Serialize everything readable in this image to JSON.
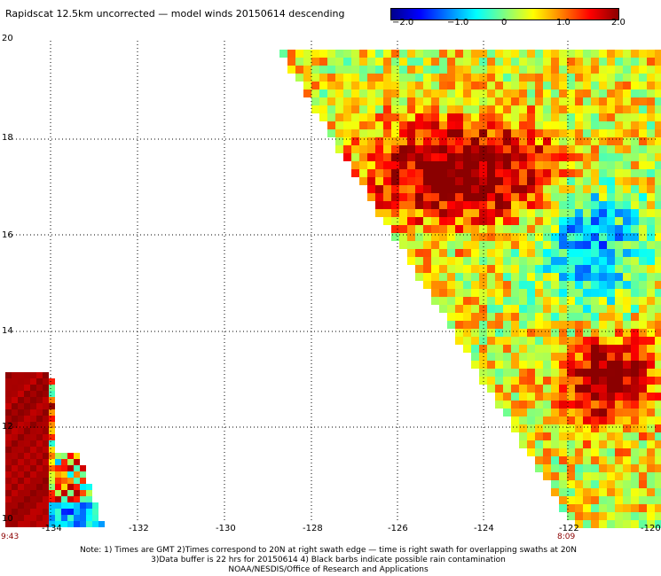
{
  "title": "Rapidscat 12.5km uncorrected — model winds 20150614 descending",
  "colorbar": {
    "labels": [
      "−2.0",
      "−1.0",
      "0",
      "1.0",
      "2.0"
    ],
    "stops": [
      "#00008b",
      "#0000ff",
      "#0080ff",
      "#00ffff",
      "#80ff80",
      "#ffff00",
      "#ff8000",
      "#ff0000",
      "#8b0000"
    ]
  },
  "y_axis": {
    "labels": [
      "20",
      "18",
      "16",
      "14",
      "12",
      "10"
    ]
  },
  "x_axis": {
    "labels": [
      "-134",
      "-132",
      "-130",
      "-128",
      "-126",
      "-124",
      "-122",
      "-120"
    ]
  },
  "time_labels": {
    "left": "9:43",
    "right": "8:09"
  },
  "notes": {
    "line1": "Note: 1) Times are GMT 2)Times correspond to 20N at right swath edge — time is right swath for overlapping swaths at 20N",
    "line2": "3)Data buffer is 22 hrs for 20150614 4) Black barbs indicate possible rain contamination",
    "line3": "NOAA/NESDIS/Office of Research and Applications"
  }
}
